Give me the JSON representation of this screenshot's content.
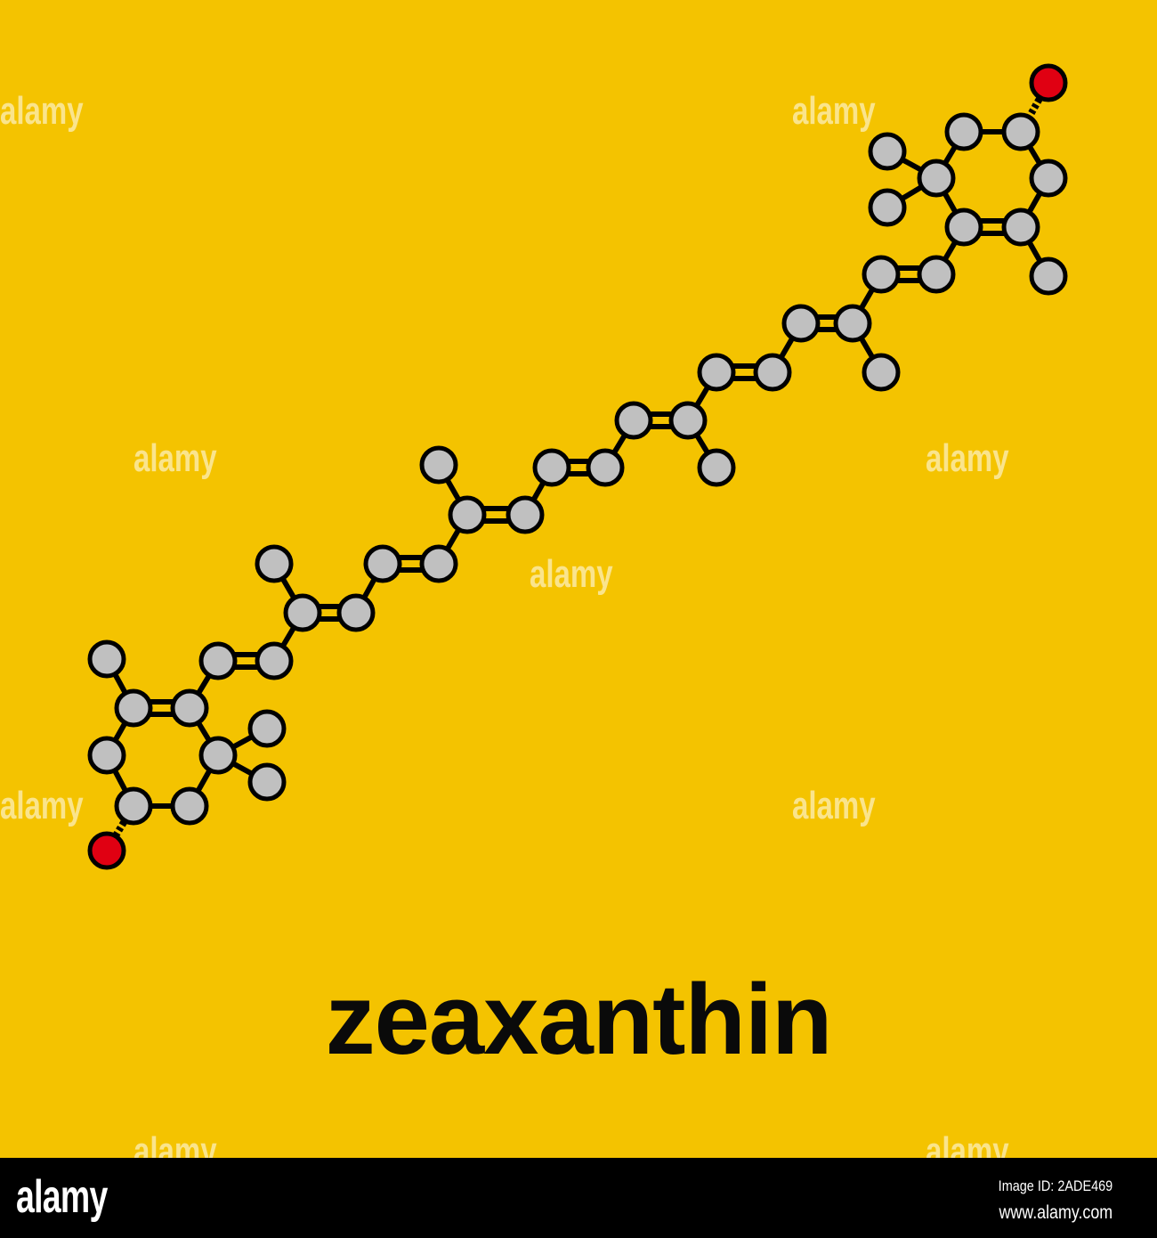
{
  "title": "zeaxanthin",
  "colors": {
    "background": "#F4C300",
    "carbon": "#C0C0C0",
    "oxygen": "#E00012",
    "outline": "#000000"
  },
  "molecule": {
    "atoms": [
      "O",
      "C",
      "C",
      "C",
      "C",
      "C",
      "C",
      "C",
      "C",
      "C",
      "C",
      "C",
      "C",
      "C",
      "C",
      "C",
      "C",
      "C",
      "C",
      "C",
      "C",
      "C",
      "C",
      "C",
      "C",
      "C",
      "C",
      "C",
      "C",
      "C",
      "C",
      "C",
      "C",
      "C",
      "C",
      "C",
      "C",
      "C",
      "C",
      "C",
      "C",
      "C"
    ],
    "bond_types": {
      "single": "single",
      "double": "double",
      "wedge": "dashed"
    }
  },
  "watermark": {
    "text": "alamy",
    "small": "a"
  },
  "footer": {
    "logo": "alamy",
    "image_id": "Image ID: 2ADE469",
    "url": "www.alamy.com"
  }
}
